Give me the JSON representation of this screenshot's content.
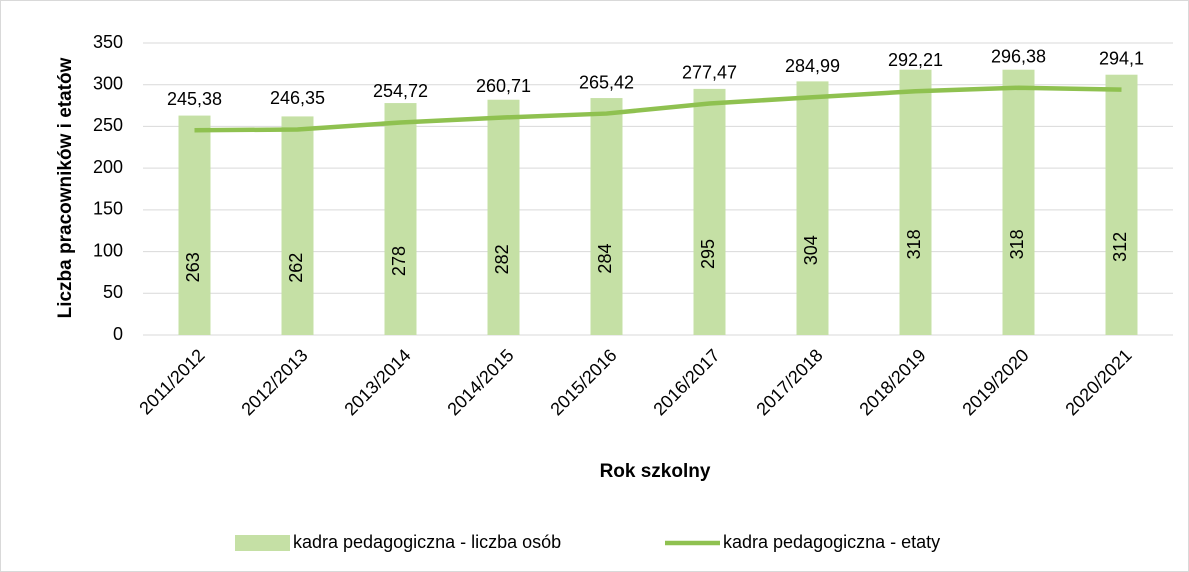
{
  "chart_data": {
    "type": "combo",
    "ylabel": "Liczba pracowników i etatów",
    "xlabel": "Rok szkolny",
    "categories": [
      "2011/2012",
      "2012/2013",
      "2013/2014",
      "2014/2015",
      "2015/2016",
      "2016/2017",
      "2017/2018",
      "2018/2019",
      "2019/2020",
      "2020/2021"
    ],
    "series": [
      {
        "name": "kadra pedagogiczna - liczba osób",
        "type": "bar",
        "color": "#c5e0a5",
        "values": [
          263,
          262,
          278,
          282,
          284,
          295,
          304,
          318,
          318,
          312
        ]
      },
      {
        "name": "kadra pedagogiczna - etaty",
        "type": "line",
        "color": "#8fc150",
        "values": [
          245.38,
          246.35,
          254.72,
          260.71,
          265.42,
          277.47,
          284.99,
          292.21,
          296.38,
          294.1
        ],
        "value_labels": [
          "245,38",
          "246,35",
          "254,72",
          "260,71",
          "265,42",
          "277,47",
          "284,99",
          "292,21",
          "296,38",
          "294,1"
        ]
      }
    ],
    "ylim": [
      0,
      350
    ],
    "yticks": [
      0,
      50,
      100,
      150,
      200,
      250,
      300,
      350
    ],
    "grid": true,
    "legend": "bottom"
  }
}
